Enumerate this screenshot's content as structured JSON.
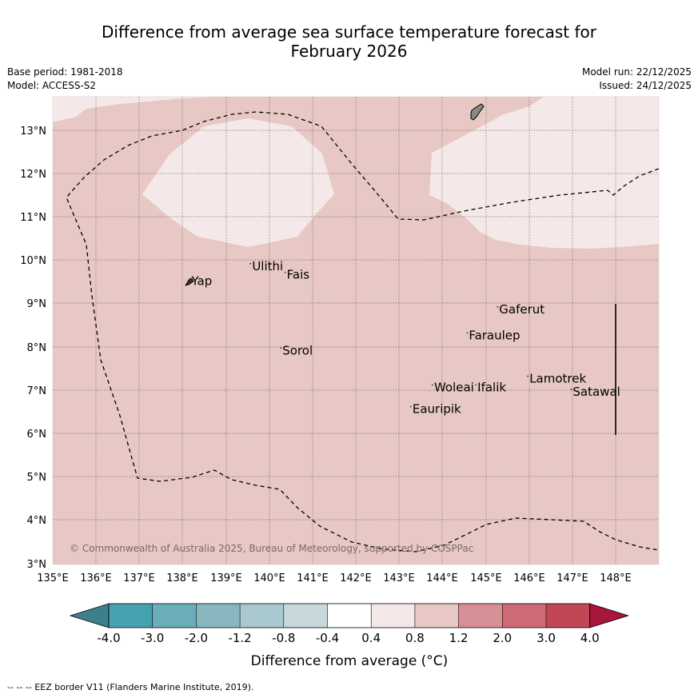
{
  "title": {
    "line1": "Difference from average sea surface temperature forecast for",
    "line2": "February 2026"
  },
  "meta": {
    "base_period": "Base period: 1981-2018",
    "model": "Model: ACCESS-S2",
    "model_run": "Model run: 22/12/2025",
    "issued": "Issued: 24/12/2025"
  },
  "map": {
    "lat_labels": [
      "13°N",
      "12°N",
      "11°N",
      "10°N",
      "9°N",
      "8°N",
      "7°N",
      "6°N",
      "5°N",
      "4°N",
      "3°N"
    ],
    "lon_labels": [
      "135°E",
      "136°E",
      "137°E",
      "138°E",
      "139°E",
      "140°E",
      "141°E",
      "142°E",
      "143°E",
      "144°E",
      "145°E",
      "146°E",
      "147°E",
      "148°E"
    ],
    "places": [
      {
        "name": "Yap",
        "lon": 138.2,
        "lat": 9.45
      },
      {
        "name": "Ulithi",
        "lon": 139.6,
        "lat": 9.8
      },
      {
        "name": "Fais",
        "lon": 140.4,
        "lat": 9.6
      },
      {
        "name": "Gaferut",
        "lon": 145.3,
        "lat": 8.8
      },
      {
        "name": "Faraulep",
        "lon": 144.6,
        "lat": 8.2
      },
      {
        "name": "Sorol",
        "lon": 140.3,
        "lat": 7.85
      },
      {
        "name": "Woleai",
        "lon": 143.8,
        "lat": 7.0
      },
      {
        "name": "Ifalik",
        "lon": 144.8,
        "lat": 7.0
      },
      {
        "name": "Lamotrek",
        "lon": 146.0,
        "lat": 7.2
      },
      {
        "name": "Satawal",
        "lon": 147.0,
        "lat": 6.9
      },
      {
        "name": "Eauripik",
        "lon": 143.3,
        "lat": 6.5
      }
    ],
    "copyright": "© Commonwealth of Australia 2025, Bureau of Meteorology, supported by COSPPac"
  },
  "colorbar": {
    "labels": [
      "-4.0",
      "-3.0",
      "-2.0",
      "-1.2",
      "-0.8",
      "-0.4",
      "0.4",
      "0.8",
      "1.2",
      "2.0",
      "3.0",
      "4.0"
    ],
    "colors": [
      "#3e7f8b",
      "#46a1b1",
      "#6aaebb",
      "#88b7c2",
      "#a9c8cf",
      "#c7d9dc",
      "#ffffff",
      "#f4e9e8",
      "#e7c8c4",
      "#d68f95",
      "#cc6b75",
      "#c14656",
      "#a8173b"
    ],
    "title": "Difference from average (°C)"
  },
  "footer": {
    "eez_note": "-- -- -- EEZ border V11 (Flanders Marine Institute, 2019)."
  }
}
